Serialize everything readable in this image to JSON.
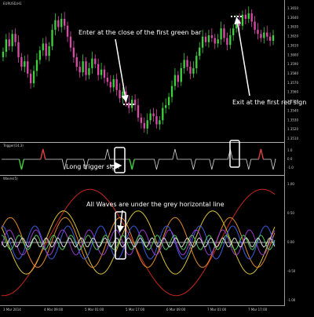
{
  "chart_data": [
    {
      "type": "candlestick",
      "panel": "price",
      "header_label": "EURUSD,H1",
      "y_scale_labels": [
        "1.3650",
        "1.3640",
        "1.3630",
        "1.3620",
        "1.3610",
        "1.3600",
        "1.3590",
        "1.3580",
        "1.3570",
        "1.3560",
        "1.3550",
        "1.3540",
        "1.3530",
        "1.3520",
        "1.3510"
      ],
      "bullish_color": "#3fcf3f",
      "bearish_color": "#d94ba8",
      "closes": [
        1.3618,
        1.3627,
        1.3622,
        1.3631,
        1.3625,
        1.3614,
        1.3607,
        1.3611,
        1.3602,
        1.3595,
        1.3604,
        1.3612,
        1.3619,
        1.3624,
        1.3615,
        1.3622,
        1.3634,
        1.3641,
        1.3636,
        1.3642,
        1.3637,
        1.3629,
        1.3621,
        1.3614,
        1.3607,
        1.3603,
        1.3611,
        1.3601,
        1.3606,
        1.3613,
        1.3609,
        1.3601,
        1.3605,
        1.3599,
        1.3596,
        1.3592,
        1.3598,
        1.359,
        1.3584,
        1.3589,
        1.3581,
        1.3577,
        1.3583,
        1.3579,
        1.357,
        1.3566,
        1.3562,
        1.3568,
        1.3573,
        1.3571,
        1.3565,
        1.3568,
        1.3577,
        1.3579,
        1.3585,
        1.3593,
        1.3601,
        1.3596,
        1.3606,
        1.3612,
        1.3607,
        1.3602,
        1.3606,
        1.3615,
        1.3621,
        1.3629,
        1.3625,
        1.363,
        1.3628,
        1.3624,
        1.3627,
        1.3635,
        1.3628,
        1.3623,
        1.363,
        1.3635,
        1.3641,
        1.3637,
        1.3645,
        1.3642,
        1.3646,
        1.364,
        1.3634,
        1.3631,
        1.3628,
        1.3632,
        1.3629,
        1.3626,
        1.363
      ],
      "annotations": [
        {
          "text": "Enter at the close of the first green bar",
          "marker": "entry-dots"
        },
        {
          "text": "Exit at the first red sign",
          "marker": "exit-dots"
        }
      ]
    },
    {
      "type": "line",
      "panel": "trigger",
      "header_label": "Trigger(14,3)",
      "y_scale_labels": [
        "1.0",
        "0.0",
        "-1.0"
      ],
      "signals": [
        {
          "index": 6,
          "direction": "down",
          "color": "#3fcf3f"
        },
        {
          "index": 13,
          "direction": "up",
          "color": "#e04040"
        },
        {
          "index": 20,
          "direction": "down",
          "color": "#ffffff"
        },
        {
          "index": 27,
          "direction": "down",
          "color": "#ffffff"
        },
        {
          "index": 34,
          "direction": "up",
          "color": "#ffffff"
        },
        {
          "index": 42,
          "direction": "down",
          "color": "#3fcf3f"
        },
        {
          "index": 50,
          "direction": "down",
          "color": "#ffffff"
        },
        {
          "index": 56,
          "direction": "up",
          "color": "#ffffff"
        },
        {
          "index": 62,
          "direction": "down",
          "color": "#ffffff"
        },
        {
          "index": 68,
          "direction": "down",
          "color": "#ffffff"
        },
        {
          "index": 74,
          "direction": "up",
          "color": "#ffffff"
        },
        {
          "index": 80,
          "direction": "down",
          "color": "#ffffff"
        },
        {
          "index": 84,
          "direction": "up",
          "color": "#e04040"
        },
        {
          "index": 88,
          "direction": "down",
          "color": "#ffffff"
        }
      ],
      "annotation": "Long trigger sign"
    },
    {
      "type": "line",
      "panel": "waves",
      "header_label": "Waves(5)",
      "y_scale_labels": [
        "1.00",
        "0.50",
        "0.00",
        "-0.50",
        "-1.00"
      ],
      "baseline": 0.5,
      "annotation": "All Waves are under the grey horizontal line",
      "series": [
        {
          "name": "wave-red",
          "color": "#c8281e",
          "amplitude": 1.6,
          "period": 220,
          "phase": -1.7
        },
        {
          "name": "wave-yellow",
          "color": "#d8c23a",
          "amplitude": 0.95,
          "period": 95,
          "phase": 2.5
        },
        {
          "name": "wave-orange",
          "color": "#e08a2a",
          "amplitude": 0.75,
          "period": 70,
          "phase": 0.4
        },
        {
          "name": "wave-blue",
          "color": "#3c5ce0",
          "amplitude": 0.5,
          "period": 42,
          "phase": 1.2
        },
        {
          "name": "wave-purple",
          "color": "#9b3cd0",
          "amplitude": 0.38,
          "period": 34,
          "phase": -0.6
        },
        {
          "name": "wave-green",
          "color": "#52c85a",
          "amplitude": 0.22,
          "period": 22,
          "phase": 0.9
        },
        {
          "name": "wave-white",
          "color": "#dddddd",
          "amplitude": 0.14,
          "period": 15,
          "phase": 2.1
        }
      ]
    }
  ],
  "footer": {
    "time_labels": [
      "3 Mar 2014",
      "4 Mar 09:00",
      "5 Mar 01:00",
      "5 Mar 17:00",
      "6 Mar 09:00",
      "7 Mar 01:00",
      "7 Mar 17:00"
    ]
  }
}
